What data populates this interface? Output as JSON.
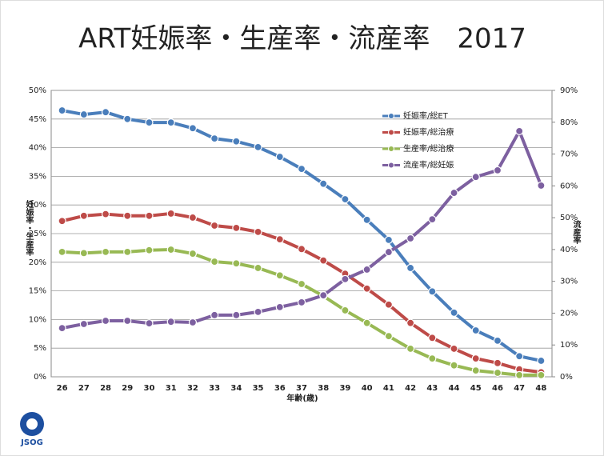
{
  "chart_data": {
    "type": "line",
    "title": "ART妊娠率・生産率・流産率　2017",
    "y_label": "妊娠率・生産率",
    "y2_label": "流産率",
    "x_label": "年齢(歳)",
    "logo_text": "JSOG",
    "categories": [
      "26",
      "27",
      "28",
      "29",
      "30",
      "31",
      "32",
      "33",
      "34",
      "35",
      "36",
      "37",
      "38",
      "39",
      "40",
      "41",
      "42",
      "43",
      "44",
      "45",
      "46",
      "47",
      "48"
    ],
    "ylim": [
      0,
      50
    ],
    "yticks": [
      {
        "value": 0,
        "label": "0%"
      },
      {
        "value": 5,
        "label": "5%"
      },
      {
        "value": 10,
        "label": "10%"
      },
      {
        "value": 15,
        "label": "15%"
      },
      {
        "value": 20,
        "label": "20%"
      },
      {
        "value": 25,
        "label": "25%"
      },
      {
        "value": 30,
        "label": "30%"
      },
      {
        "value": 35,
        "label": "35%"
      },
      {
        "value": 40,
        "label": "40%"
      },
      {
        "value": 45,
        "label": "45%"
      },
      {
        "value": 50,
        "label": "50%"
      }
    ],
    "y2lim": [
      0,
      90
    ],
    "y2ticks": [
      {
        "value": 0,
        "label": "0%"
      },
      {
        "value": 10,
        "label": "10%"
      },
      {
        "value": 20,
        "label": "20%"
      },
      {
        "value": 30,
        "label": "30%"
      },
      {
        "value": 40,
        "label": "40%"
      },
      {
        "value": 50,
        "label": "50%"
      },
      {
        "value": 60,
        "label": "60%"
      },
      {
        "value": 70,
        "label": "70%"
      },
      {
        "value": 80,
        "label": "80%"
      },
      {
        "value": 90,
        "label": "90%"
      }
    ],
    "grid": true,
    "legend": "top-right",
    "series": [
      {
        "name": "妊娠率/総ET",
        "color": "#4a7ebb",
        "values": [
          46.5,
          45.8,
          46.2,
          45.0,
          44.4,
          44.4,
          43.4,
          41.6,
          41.1,
          40.1,
          38.4,
          36.3,
          33.7,
          31.0,
          27.4,
          23.9,
          19.0,
          14.9,
          11.2,
          8.1,
          6.3,
          3.6,
          2.8
        ]
      },
      {
        "name": "妊娠率/総治療",
        "color": "#be4b48",
        "values": [
          27.2,
          28.1,
          28.4,
          28.1,
          28.1,
          28.5,
          27.8,
          26.4,
          26.0,
          25.3,
          24.0,
          22.3,
          20.3,
          18.0,
          15.4,
          12.6,
          9.4,
          6.8,
          4.9,
          3.2,
          2.4,
          1.3,
          0.8
        ]
      },
      {
        "name": "生産率/総治療",
        "color": "#98b954",
        "values": [
          21.8,
          21.6,
          21.8,
          21.8,
          22.1,
          22.2,
          21.5,
          20.1,
          19.8,
          19.0,
          17.7,
          16.2,
          14.1,
          11.6,
          9.4,
          7.1,
          4.9,
          3.2,
          2.0,
          1.1,
          0.7,
          0.3,
          0.3
        ]
      },
      {
        "name": "流産率/総妊娠",
        "color": "#7d60a0",
        "axis": "y2",
        "values": [
          15.3,
          16.6,
          17.6,
          17.6,
          16.8,
          17.3,
          17.1,
          19.4,
          19.4,
          20.4,
          21.9,
          23.4,
          25.6,
          30.7,
          33.7,
          39.2,
          43.5,
          49.5,
          57.8,
          62.8,
          64.9,
          77.2,
          60.1
        ]
      }
    ]
  }
}
